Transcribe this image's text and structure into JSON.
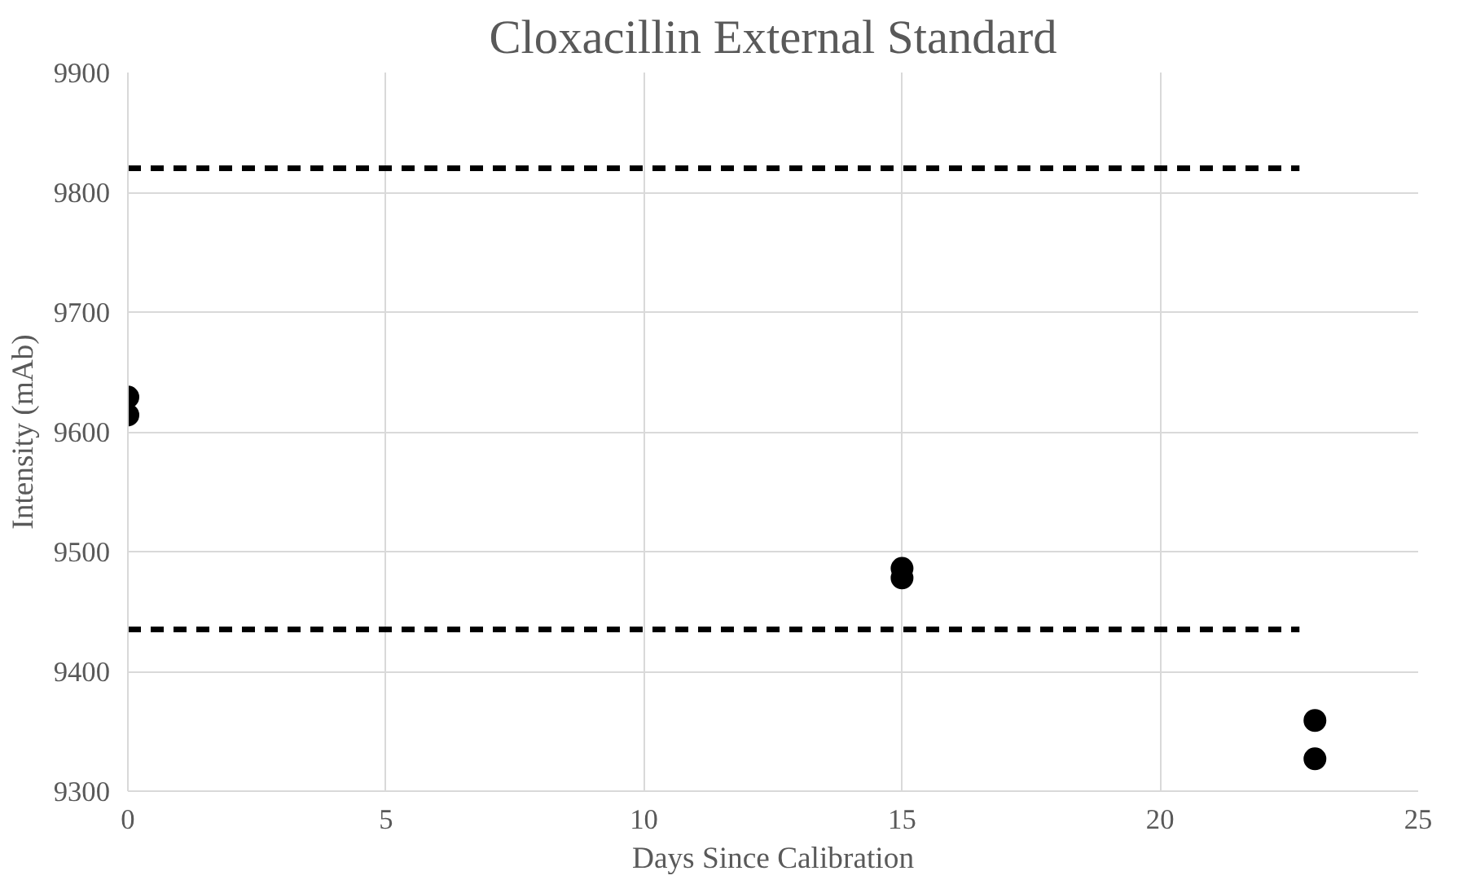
{
  "chart_data": {
    "type": "scatter",
    "title": "Cloxacillin External Standard",
    "xlabel": "Days Since Calibration",
    "ylabel": "Intensity (mAb)",
    "xlim": [
      0,
      25
    ],
    "xticks": [
      0,
      5,
      10,
      15,
      20,
      25
    ],
    "ylim": [
      9300,
      9900
    ],
    "yticks": [
      9300,
      9400,
      9500,
      9600,
      9700,
      9800,
      9900
    ],
    "grid": true,
    "marker": "circle",
    "series": [
      {
        "color": "#000000",
        "x": [
          0,
          0,
          15,
          15,
          23,
          23
        ],
        "values": [
          9629,
          9614,
          9486,
          9478,
          9359,
          9327
        ]
      },
      {
        "type": "line",
        "color": "#000000",
        "line_style": "dashed",
        "marker": "none",
        "x": [
          0,
          22.7
        ],
        "values": [
          9820,
          9820
        ]
      },
      {
        "type": "line",
        "color": "#000000",
        "line_style": "dashed",
        "marker": "none",
        "x": [
          0,
          22.7
        ],
        "values": [
          9435,
          9435
        ]
      }
    ]
  }
}
